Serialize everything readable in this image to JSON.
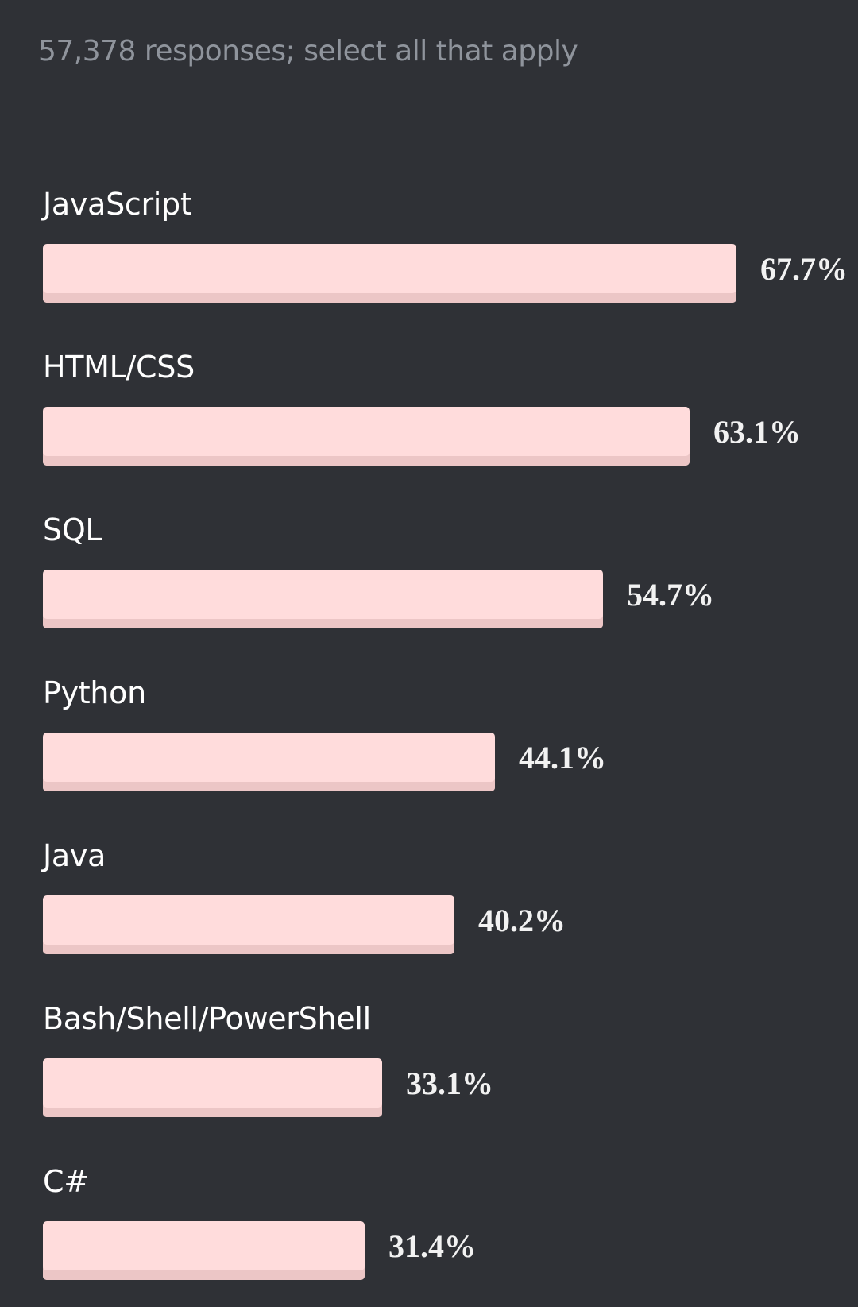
{
  "subtitle": "57,378 responses; select all that apply",
  "colors": {
    "background": "#2f3136",
    "bar": "#ffdcdc",
    "bar_shade": "#ecc6c6",
    "label": "#ffffff",
    "subtitle": "#8f949c"
  },
  "chart_data": {
    "type": "bar",
    "orientation": "horizontal",
    "title": "",
    "subtitle": "57,378 responses; select all that apply",
    "xlabel": "",
    "ylabel": "",
    "xlim": [
      0,
      67.7
    ],
    "grid": false,
    "categories": [
      "JavaScript",
      "HTML/CSS",
      "SQL",
      "Python",
      "Java",
      "Bash/Shell/PowerShell",
      "C#"
    ],
    "values": [
      67.7,
      63.1,
      54.7,
      44.1,
      40.2,
      33.1,
      31.4
    ],
    "value_labels": [
      "67.7%",
      "63.1%",
      "54.7%",
      "44.1%",
      "40.2%",
      "33.1%",
      "31.4%"
    ]
  }
}
